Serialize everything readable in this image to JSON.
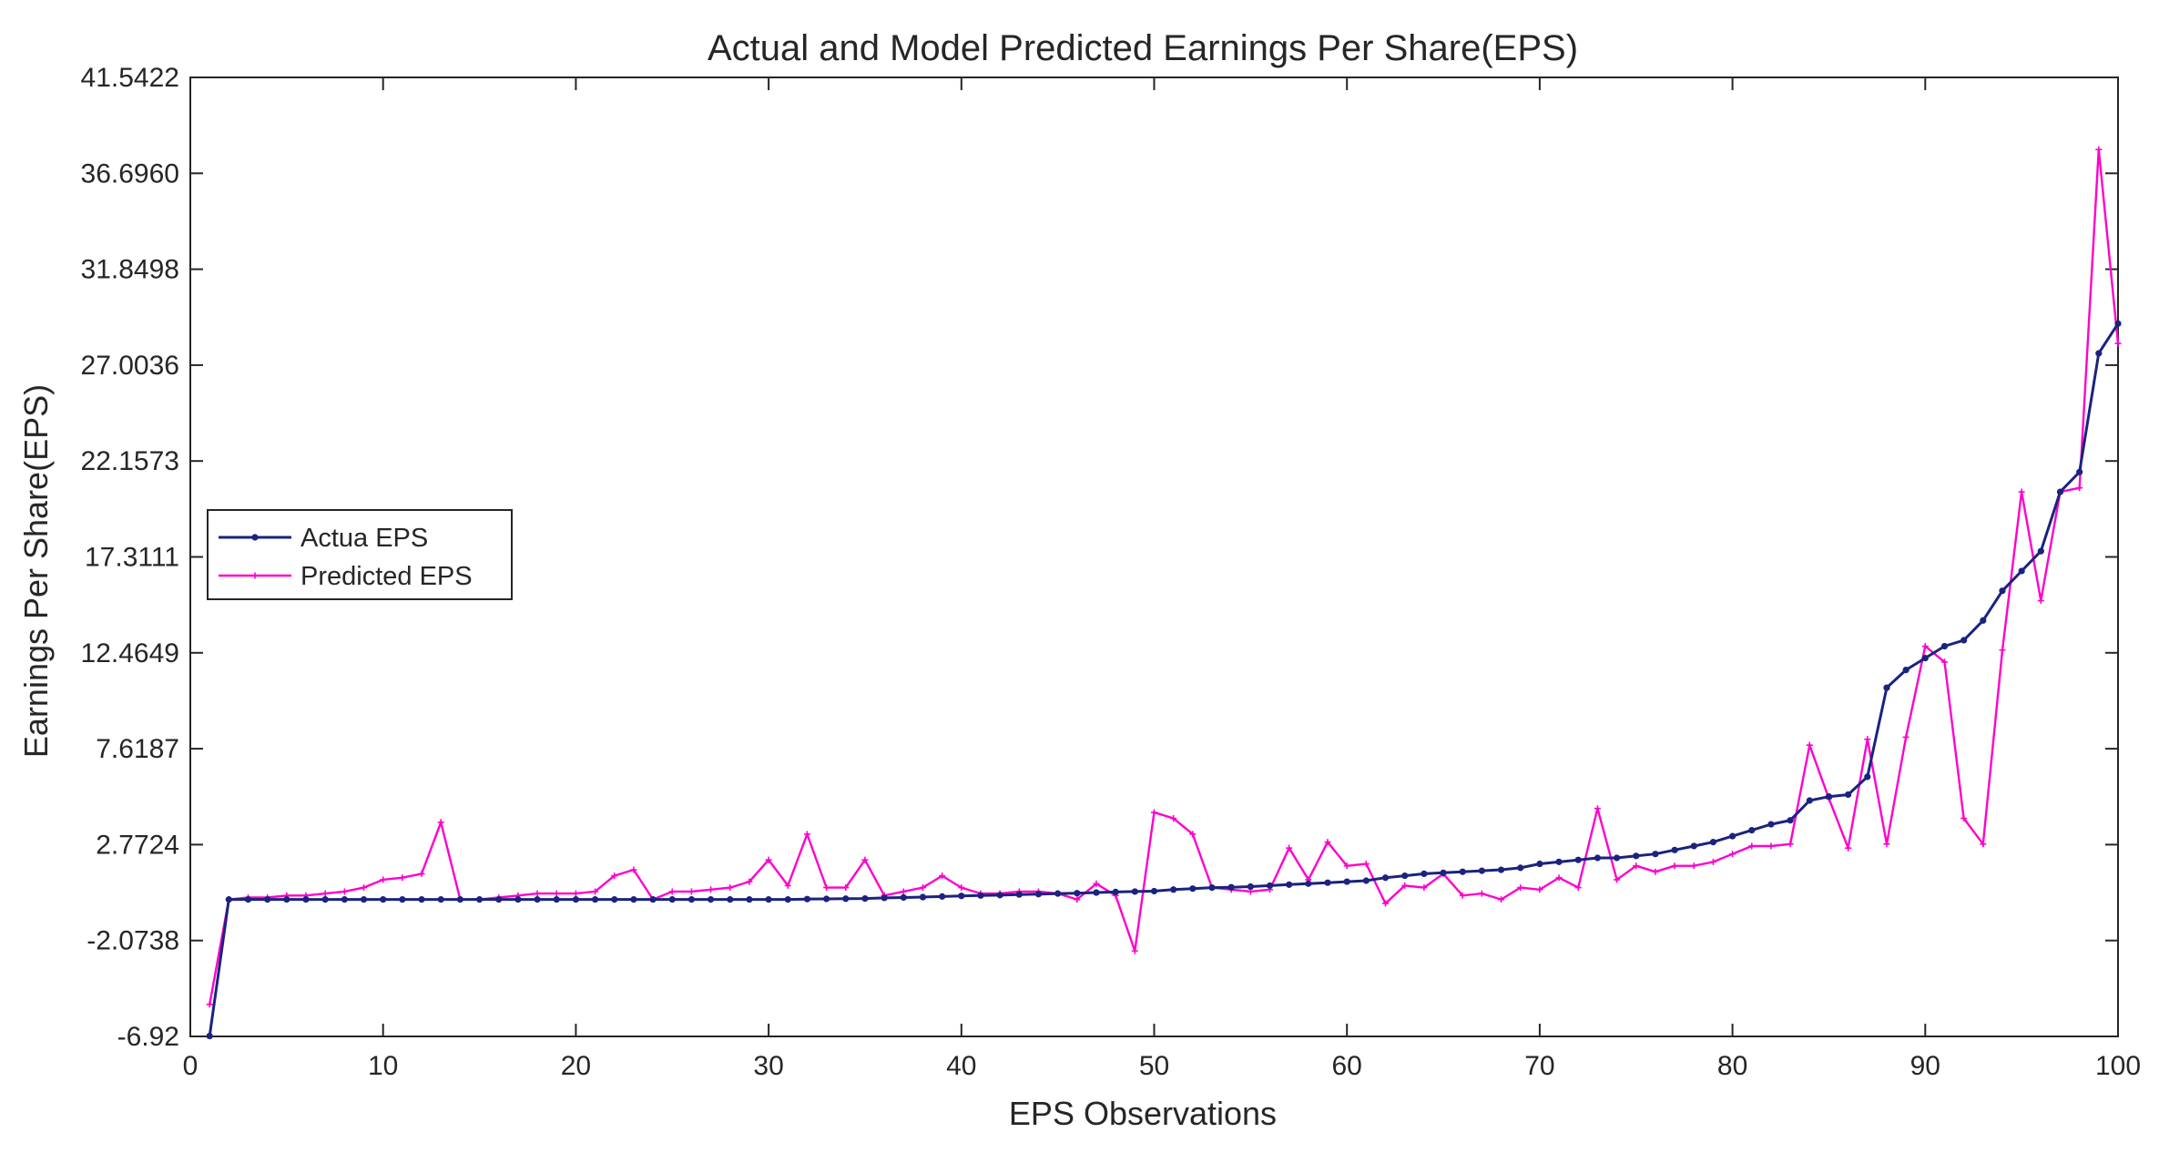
{
  "chart_data": {
    "type": "line",
    "title": "Actual and Model Predicted Earnings Per Share(EPS)",
    "xlabel": "EPS Observations",
    "ylabel": "Earnings Per Share(EPS)",
    "xlim": [
      0,
      100
    ],
    "ylim": [
      -6.92,
      41.5422
    ],
    "x_ticks": [
      0,
      10,
      20,
      30,
      40,
      50,
      60,
      70,
      80,
      90,
      100
    ],
    "y_ticks": [
      -6.92,
      -2.0738,
      2.7724,
      7.6187,
      12.4649,
      17.3111,
      22.1573,
      27.0036,
      31.8498,
      36.696,
      41.5422
    ],
    "x_tick_labels": [
      "0",
      "10",
      "20",
      "30",
      "40",
      "50",
      "60",
      "70",
      "80",
      "90",
      "100"
    ],
    "y_tick_labels": [
      "-6.92",
      "-2.0738",
      "2.7724",
      "7.6187",
      "12.4649",
      "17.3111",
      "22.1573",
      "27.0036",
      "31.8498",
      "36.6960",
      "41.5422"
    ],
    "grid": false,
    "legend_position": "middle-left",
    "x": [
      1,
      2,
      3,
      4,
      5,
      6,
      7,
      8,
      9,
      10,
      11,
      12,
      13,
      14,
      15,
      16,
      17,
      18,
      19,
      20,
      21,
      22,
      23,
      24,
      25,
      26,
      27,
      28,
      29,
      30,
      31,
      32,
      33,
      34,
      35,
      36,
      37,
      38,
      39,
      40,
      41,
      42,
      43,
      44,
      45,
      46,
      47,
      48,
      49,
      50,
      51,
      52,
      53,
      54,
      55,
      56,
      57,
      58,
      59,
      60,
      61,
      62,
      63,
      64,
      65,
      66,
      67,
      68,
      69,
      70,
      71,
      72,
      73,
      74,
      75,
      76,
      77,
      78,
      79,
      80,
      81,
      82,
      83,
      84,
      85,
      86,
      87,
      88,
      89,
      90,
      91,
      92,
      93,
      94,
      95,
      96,
      97,
      98,
      99,
      100
    ],
    "series": [
      {
        "name": "Actua EPS",
        "color": "#1a237e",
        "marker": "dot",
        "values": [
          -6.9,
          0.0,
          0.0,
          0.0,
          0.0,
          0.0,
          0.0,
          0.0,
          0.0,
          0.0,
          0.0,
          0.0,
          0.0,
          0.0,
          0.0,
          0.0,
          0.0,
          0.0,
          0.0,
          0.0,
          0.0,
          0.0,
          0.0,
          0.0,
          0.0,
          0.0,
          0.0,
          0.0,
          0.0,
          0.0,
          0.0,
          0.02,
          0.03,
          0.04,
          0.05,
          0.08,
          0.1,
          0.12,
          0.15,
          0.18,
          0.2,
          0.22,
          0.25,
          0.27,
          0.3,
          0.32,
          0.35,
          0.38,
          0.4,
          0.42,
          0.5,
          0.55,
          0.6,
          0.62,
          0.65,
          0.7,
          0.75,
          0.8,
          0.85,
          0.9,
          0.95,
          1.1,
          1.2,
          1.3,
          1.35,
          1.4,
          1.45,
          1.5,
          1.6,
          1.8,
          1.9,
          2.0,
          2.1,
          2.1,
          2.2,
          2.3,
          2.5,
          2.7,
          2.9,
          3.2,
          3.5,
          3.8,
          4.0,
          5.0,
          5.2,
          5.3,
          6.2,
          10.7,
          11.6,
          12.2,
          12.8,
          13.1,
          14.1,
          15.6,
          16.6,
          17.6,
          20.6,
          21.6,
          27.6,
          29.1
        ]
      },
      {
        "name": "Predicted EPS",
        "color": "#ff00cc",
        "marker": "plus",
        "values": [
          -5.3,
          0.0,
          0.1,
          0.1,
          0.2,
          0.2,
          0.3,
          0.4,
          0.6,
          1.0,
          1.1,
          1.3,
          3.9,
          0.0,
          0.0,
          0.1,
          0.2,
          0.3,
          0.3,
          0.3,
          0.4,
          1.2,
          1.5,
          0.0,
          0.4,
          0.4,
          0.5,
          0.6,
          0.9,
          2.0,
          0.7,
          3.3,
          0.6,
          0.6,
          2.0,
          0.2,
          0.4,
          0.6,
          1.2,
          0.6,
          0.3,
          0.3,
          0.4,
          0.4,
          0.3,
          0.0,
          0.8,
          0.2,
          -2.6,
          4.4,
          4.1,
          3.3,
          0.6,
          0.5,
          0.4,
          0.5,
          2.6,
          1.0,
          2.9,
          1.7,
          1.8,
          -0.2,
          0.7,
          0.6,
          1.3,
          0.2,
          0.3,
          0.0,
          0.6,
          0.5,
          1.1,
          0.6,
          4.6,
          1.0,
          1.7,
          1.4,
          1.7,
          1.7,
          1.9,
          2.3,
          2.7,
          2.7,
          2.8,
          7.8,
          5.1,
          2.6,
          8.1,
          2.8,
          8.2,
          12.8,
          12.0,
          4.1,
          2.8,
          12.6,
          20.6,
          15.1,
          20.6,
          20.8,
          37.9,
          28.1
        ]
      }
    ]
  }
}
